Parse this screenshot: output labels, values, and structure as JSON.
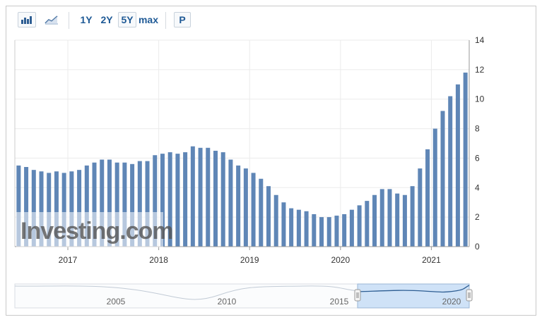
{
  "toolbar": {
    "bar_chart_icon": "bar-chart-icon",
    "line_chart_icon": "line-chart-icon",
    "ranges": [
      "1Y",
      "2Y",
      "5Y",
      "max"
    ],
    "selected_range": "5Y",
    "p_label": "P"
  },
  "watermark": "Investing.com",
  "colors": {
    "bar": "#5f86b6",
    "navigator_fill": "#cfe2f7",
    "grid": "#ebebeb"
  },
  "chart_data": {
    "type": "bar",
    "title": "",
    "xlabel": "",
    "ylabel": "",
    "ylim": [
      0,
      14
    ],
    "yticks": [
      0,
      2,
      4,
      6,
      8,
      10,
      12,
      14
    ],
    "x_tick_labels": [
      "2017",
      "2018",
      "2019",
      "2020",
      "2021"
    ],
    "x_start": "2016-06",
    "values": [
      5.5,
      5.4,
      5.2,
      5.1,
      5.0,
      5.1,
      5.0,
      5.1,
      5.2,
      5.5,
      5.7,
      5.9,
      5.9,
      5.7,
      5.7,
      5.6,
      5.8,
      5.8,
      6.2,
      6.3,
      6.4,
      6.3,
      6.4,
      6.8,
      6.7,
      6.7,
      6.5,
      6.4,
      5.9,
      5.5,
      5.3,
      5.0,
      4.6,
      4.1,
      3.5,
      3.0,
      2.6,
      2.5,
      2.4,
      2.2,
      2.0,
      2.0,
      2.1,
      2.2,
      2.5,
      2.8,
      3.1,
      3.5,
      3.9,
      3.9,
      3.6,
      3.5,
      4.1,
      5.3,
      6.6,
      8.0,
      9.2,
      10.2,
      11.0,
      11.8
    ],
    "grid": true,
    "legend": "none"
  },
  "navigator": {
    "labels": [
      "2005",
      "2010",
      "2015",
      "2020"
    ]
  }
}
